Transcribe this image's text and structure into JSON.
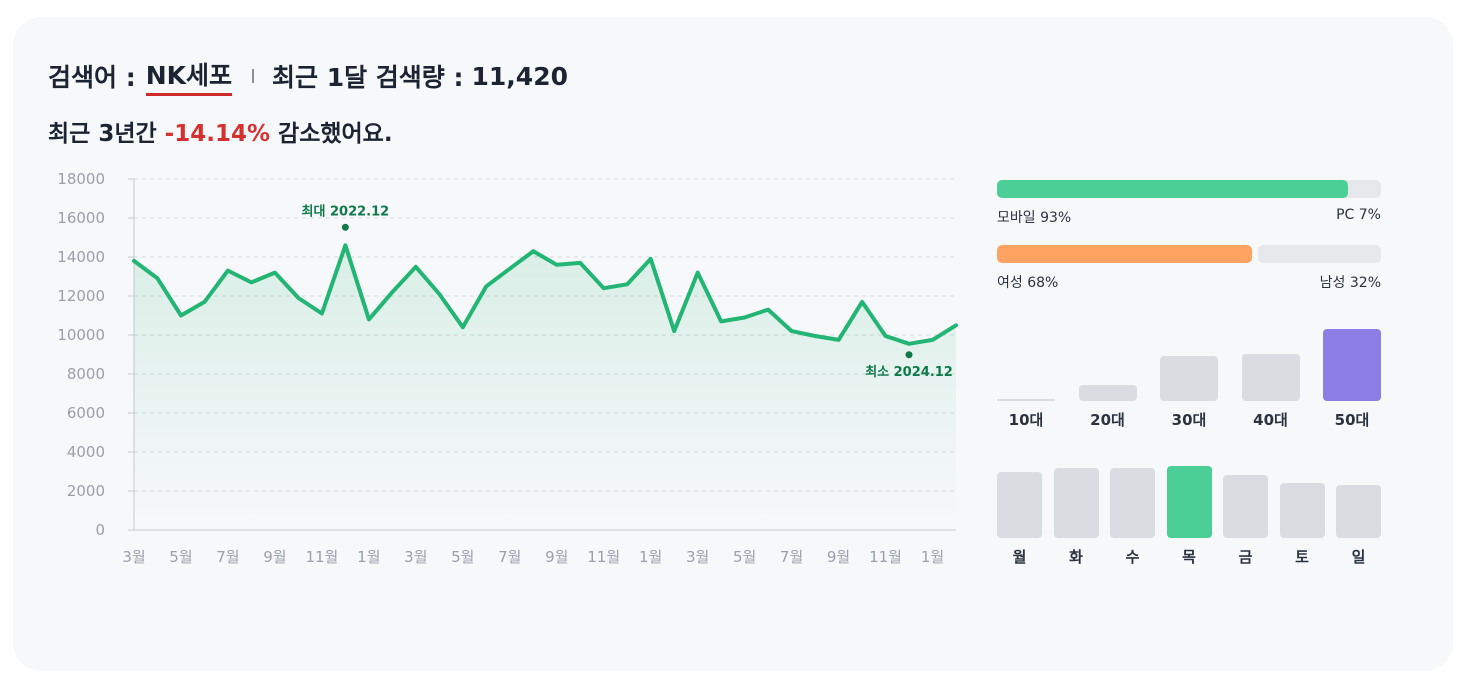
{
  "header": {
    "keyword_prefix": "검색어 :",
    "keyword": "NK세포",
    "monthly_prefix": "최근 1달 검색량 :",
    "monthly_value": "11,420"
  },
  "summary": {
    "prefix": "최근 3년간",
    "change": "-14.14%",
    "suffix": "감소했어요."
  },
  "chart_data": {
    "type": "area",
    "ylim": [
      0,
      18000
    ],
    "yticks": [
      "0",
      "2000",
      "4000",
      "6000",
      "8000",
      "10000",
      "12000",
      "14000",
      "16000",
      "18000"
    ],
    "x_tick_labels": [
      "3월",
      "5월",
      "7월",
      "9월",
      "11월",
      "1월",
      "3월",
      "5월",
      "7월",
      "9월",
      "11월",
      "1월",
      "3월",
      "5월",
      "7월",
      "9월",
      "11월",
      "1월"
    ],
    "values": [
      13800,
      12900,
      11000,
      11700,
      13300,
      12700,
      13200,
      11900,
      11100,
      14600,
      10800,
      12200,
      13500,
      12100,
      10400,
      12500,
      13400,
      14300,
      13600,
      13700,
      12400,
      12600,
      13900,
      10200,
      13200,
      10700,
      10900,
      11300,
      10200,
      9950,
      9750,
      11700,
      9950,
      9550,
      9750,
      10500
    ],
    "annotations": {
      "max_label": "최대",
      "max_date": "2022.12",
      "min_label": "최소",
      "min_date": "2024.12"
    },
    "line_color": "#22b573",
    "grid": true
  },
  "device": {
    "mobile_label": "모바일 93%",
    "mobile_share": 93,
    "pc_label": "PC 7%",
    "pc_share": 7,
    "mobile_color": "#4ccf96"
  },
  "gender": {
    "female_label": "여성 68%",
    "female_share": 68,
    "male_label": "남성 32%",
    "male_share": 32,
    "female_color": "#ffa362"
  },
  "age": {
    "groups": [
      {
        "label": "10대",
        "level": 2
      },
      {
        "label": "20대",
        "level": 22
      },
      {
        "label": "30대",
        "level": 62
      },
      {
        "label": "40대",
        "level": 65
      },
      {
        "label": "50대",
        "level": 100
      }
    ],
    "highlight_color": "#8b7fe6"
  },
  "weekday": {
    "days": [
      {
        "label": "월",
        "level": 91
      },
      {
        "label": "화",
        "level": 97
      },
      {
        "label": "수",
        "level": 97
      },
      {
        "label": "목",
        "level": 100
      },
      {
        "label": "금",
        "level": 88
      },
      {
        "label": "토",
        "level": 77
      },
      {
        "label": "일",
        "level": 74
      }
    ],
    "highlight_color": "#4ccf96"
  }
}
